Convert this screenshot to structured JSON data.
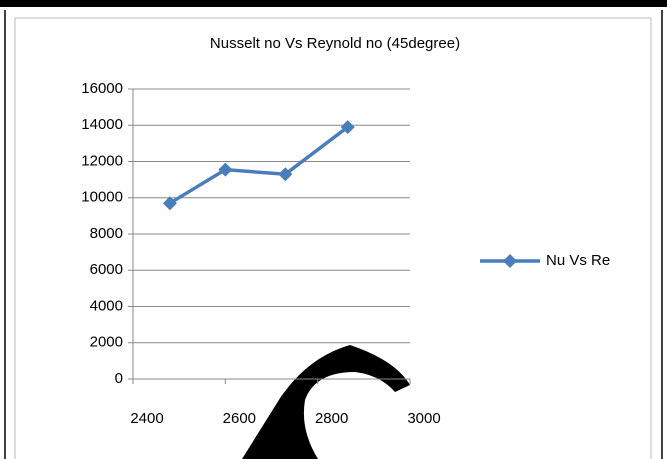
{
  "chart_data": {
    "type": "line",
    "title": "Nusselt no Vs Reynold no (45degree)",
    "x": [
      2480,
      2600,
      2730,
      2865
    ],
    "series": [
      {
        "name": "Nu Vs Re",
        "color": "#4a7ebb",
        "values": [
          9700,
          11550,
          11300,
          13900
        ]
      }
    ],
    "xlim": [
      2400,
      3000
    ],
    "xticks": [
      2400,
      2600,
      2800,
      3000
    ],
    "ylim": [
      0,
      16000
    ],
    "yticks": [
      0,
      2000,
      4000,
      6000,
      8000,
      10000,
      12000,
      14000,
      16000
    ],
    "grid": true,
    "legend": "right"
  }
}
